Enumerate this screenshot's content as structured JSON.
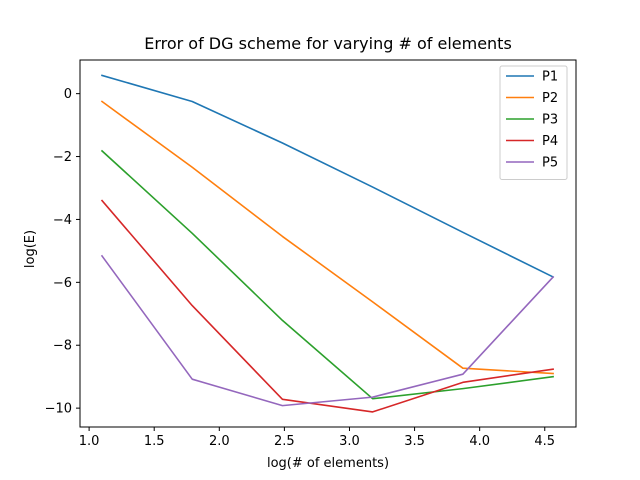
{
  "chart_data": {
    "type": "line",
    "title": "Error of DG scheme for varying # of elements",
    "xlabel": "log(# of elements)",
    "ylabel": "log(E)",
    "xlim": [
      0.93,
      4.74
    ],
    "ylim": [
      -10.6,
      1.07
    ],
    "xticks": [
      "1.0",
      "1.5",
      "2.0",
      "2.5",
      "3.0",
      "3.5",
      "4.0",
      "4.5"
    ],
    "yticks": [
      "0",
      "−2",
      "−4",
      "−6",
      "−8",
      "−10"
    ],
    "x": [
      1.099,
      1.792,
      2.485,
      3.178,
      3.871,
      4.564
    ],
    "series": [
      {
        "name": "P1",
        "color": "#1f77b4",
        "values": [
          0.58,
          -0.25,
          -1.57,
          -2.97,
          -4.41,
          -5.83
        ]
      },
      {
        "name": "P2",
        "color": "#ff7f0e",
        "values": [
          -0.25,
          -2.34,
          -4.54,
          -6.62,
          -8.73,
          -8.9
        ]
      },
      {
        "name": "P3",
        "color": "#2ca02c",
        "values": [
          -1.82,
          -4.44,
          -7.21,
          -9.7,
          -9.38,
          -9.0
        ]
      },
      {
        "name": "P4",
        "color": "#d62728",
        "values": [
          -3.4,
          -6.74,
          -9.72,
          -10.12,
          -9.18,
          -8.76
        ]
      },
      {
        "name": "P5",
        "color": "#9467bd",
        "values": [
          -5.16,
          -9.08,
          -9.92,
          -9.65,
          -8.92,
          -5.83
        ]
      }
    ],
    "grid": false,
    "legend_position": "top-right"
  }
}
